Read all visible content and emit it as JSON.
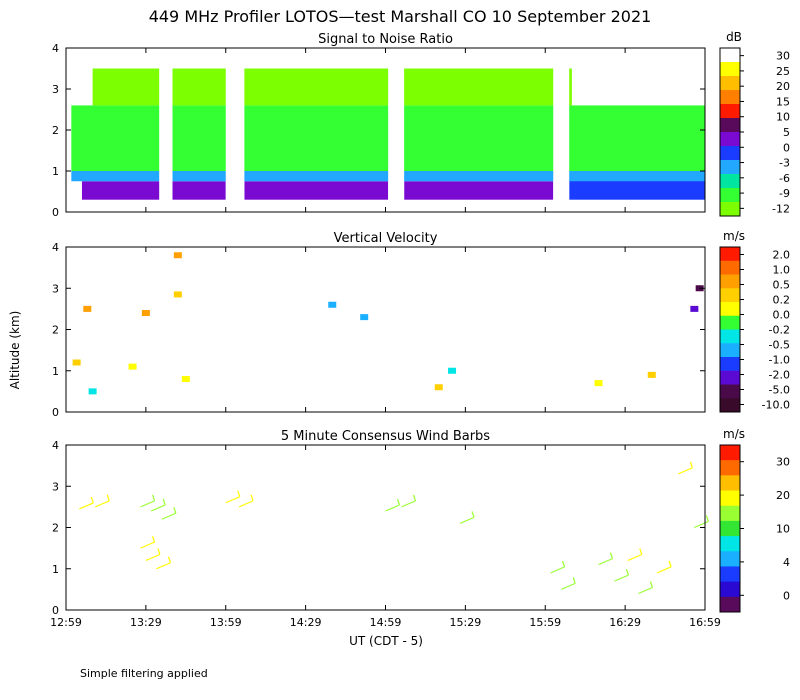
{
  "title": "449 MHz Profiler LOTOS—test Marshall CO 10 September 2021",
  "ylabel": "Altitude (km)",
  "xlabel": "UT  (CDT - 5)",
  "note": "Simple filtering applied",
  "chart_data": [
    {
      "type": "heatmap",
      "title": "Signal to Noise Ratio",
      "units": "dB",
      "xlim": [
        0,
        240
      ],
      "ylim": [
        0,
        4
      ],
      "x_ticks": [
        "12:59",
        "13:29",
        "13:59",
        "14:29",
        "14:59",
        "15:29",
        "15:59",
        "16:29",
        "16:59"
      ],
      "y_ticks": [
        "0",
        "1",
        "2",
        "3",
        "4"
      ],
      "colorbar": {
        "labels": [
          "30",
          "25",
          "20",
          "15",
          "10",
          "5",
          "0",
          "-3",
          "-6",
          "-9",
          "-12"
        ],
        "colors": [
          "#ffffff",
          "#ffff00",
          "#ffbf00",
          "#ff7f00",
          "#ff1a00",
          "#5a0a5a",
          "#7a0ad2",
          "#1a3cff",
          "#22a8ff",
          "#00e6a0",
          "#33ff33",
          "#7cff00"
        ]
      },
      "data_gaps": [
        [
          35,
          40
        ],
        [
          60,
          67
        ],
        [
          121,
          127
        ],
        [
          183,
          189
        ]
      ],
      "regions": [
        {
          "x": [
            6,
            60
          ],
          "y": [
            0.3,
            0.75
          ],
          "value": 5
        },
        {
          "x": [
            67,
            121
          ],
          "y": [
            0.3,
            0.75
          ],
          "value": 5
        },
        {
          "x": [
            127,
            183
          ],
          "y": [
            0.3,
            0.75
          ],
          "value": 5
        },
        {
          "x": [
            189,
            240
          ],
          "y": [
            0.3,
            0.85
          ],
          "value": 2
        },
        {
          "x": [
            2,
            240
          ],
          "y": [
            0.75,
            1.0
          ],
          "value": -4
        },
        {
          "x": [
            2,
            240
          ],
          "y": [
            1.0,
            2.6
          ],
          "value": -10
        },
        {
          "x": [
            10,
            190
          ],
          "y": [
            2.6,
            3.5
          ],
          "value": -11
        }
      ]
    },
    {
      "type": "heatmap",
      "title": "Vertical Velocity",
      "units": "m/s",
      "xlim": [
        0,
        240
      ],
      "ylim": [
        0,
        4
      ],
      "x_ticks": [
        "12:59",
        "13:29",
        "13:59",
        "14:29",
        "14:59",
        "15:29",
        "15:59",
        "16:29",
        "16:59"
      ],
      "y_ticks": [
        "0",
        "1",
        "2",
        "3",
        "4"
      ],
      "colorbar": {
        "labels": [
          "2.0",
          "1.0",
          "0.5",
          "0.2",
          "0.0",
          "-0.2",
          "-0.5",
          "-1.0",
          "-2.0",
          "-5.0",
          "-10.0"
        ],
        "colors": [
          "#ff1a00",
          "#ff6a00",
          "#ff9f00",
          "#ffcf00",
          "#ffff00",
          "#33ff33",
          "#00e6e6",
          "#1ab0ff",
          "#1a3cff",
          "#5a0ad2",
          "#4a0a4a",
          "#3a0a2a"
        ]
      },
      "points": [
        {
          "x": 8,
          "y": 2.5,
          "value": 1.0
        },
        {
          "x": 30,
          "y": 2.4,
          "value": 1.0
        },
        {
          "x": 42,
          "y": 3.8,
          "value": 1.0
        },
        {
          "x": 42,
          "y": 2.85,
          "value": 0.5
        },
        {
          "x": 4,
          "y": 1.2,
          "value": 0.5
        },
        {
          "x": 10,
          "y": 0.5,
          "value": -0.2
        },
        {
          "x": 25,
          "y": 1.1,
          "value": 0.2
        },
        {
          "x": 45,
          "y": 0.8,
          "value": 0.2
        },
        {
          "x": 100,
          "y": 2.6,
          "value": -0.5
        },
        {
          "x": 112,
          "y": 2.3,
          "value": -0.5
        },
        {
          "x": 140,
          "y": 0.6,
          "value": 0.5
        },
        {
          "x": 145,
          "y": 1.0,
          "value": -0.2
        },
        {
          "x": 200,
          "y": 0.7,
          "value": 0.2
        },
        {
          "x": 220,
          "y": 0.9,
          "value": 0.5
        },
        {
          "x": 236,
          "y": 2.5,
          "value": -2.0
        },
        {
          "x": 238,
          "y": 3.0,
          "value": -5.0
        }
      ]
    },
    {
      "type": "wind_barbs",
      "title": "5 Minute Consensus Wind Barbs",
      "units": "m/s",
      "xlim": [
        0,
        240
      ],
      "ylim": [
        0,
        4
      ],
      "x_ticks": [
        "12:59",
        "13:29",
        "13:59",
        "14:29",
        "14:59",
        "15:29",
        "15:59",
        "16:29",
        "16:59"
      ],
      "y_ticks": [
        "0",
        "1",
        "2",
        "3",
        "4"
      ],
      "colorbar": {
        "labels": [
          "30",
          "20",
          "10",
          "4",
          "0"
        ],
        "colors": [
          "#ff1a00",
          "#ff6a00",
          "#ffbf00",
          "#ffff00",
          "#99ff33",
          "#33e633",
          "#00e6e6",
          "#1ab0ff",
          "#1a3cff",
          "#2a0ad2",
          "#5a0a5a"
        ]
      },
      "barbs": [
        {
          "x": 5,
          "y": 2.45,
          "speed": 7
        },
        {
          "x": 11,
          "y": 2.5,
          "speed": 7
        },
        {
          "x": 28,
          "y": 2.5,
          "speed": 6
        },
        {
          "x": 32,
          "y": 2.4,
          "speed": 3
        },
        {
          "x": 36,
          "y": 2.2,
          "speed": 2
        },
        {
          "x": 28,
          "y": 1.5,
          "speed": 10
        },
        {
          "x": 30,
          "y": 1.2,
          "speed": 10
        },
        {
          "x": 34,
          "y": 1.0,
          "speed": 11
        },
        {
          "x": 60,
          "y": 2.6,
          "speed": 12
        },
        {
          "x": 65,
          "y": 2.5,
          "speed": 11
        },
        {
          "x": 120,
          "y": 2.4,
          "speed": 2
        },
        {
          "x": 126,
          "y": 2.5,
          "speed": 2
        },
        {
          "x": 148,
          "y": 2.1,
          "speed": 2
        },
        {
          "x": 182,
          "y": 0.9,
          "speed": 6
        },
        {
          "x": 186,
          "y": 0.5,
          "speed": 3
        },
        {
          "x": 200,
          "y": 1.1,
          "speed": 5
        },
        {
          "x": 206,
          "y": 0.7,
          "speed": 6
        },
        {
          "x": 211,
          "y": 1.2,
          "speed": 7
        },
        {
          "x": 215,
          "y": 0.4,
          "speed": 4
        },
        {
          "x": 222,
          "y": 0.9,
          "speed": 7
        },
        {
          "x": 230,
          "y": 3.3,
          "speed": 13
        },
        {
          "x": 236,
          "y": 2.0,
          "speed": 3
        }
      ]
    }
  ]
}
